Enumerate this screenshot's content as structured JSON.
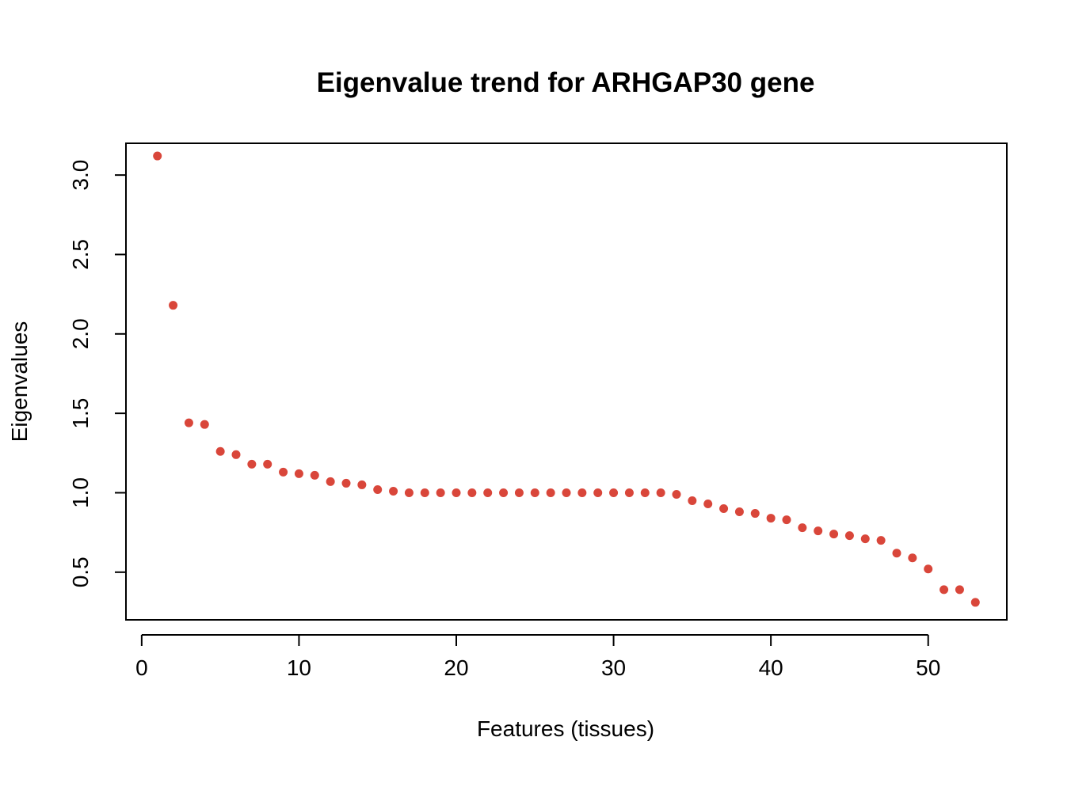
{
  "chart_data": {
    "type": "scatter",
    "title": "Eigenvalue trend for ARHGAP30 gene",
    "xlabel": "Features (tissues)",
    "ylabel": "Eigenvalues",
    "xlim": [
      -1,
      55
    ],
    "ylim": [
      0.2,
      3.2
    ],
    "xticks": [
      0,
      10,
      20,
      30,
      40,
      50
    ],
    "xtick_labels": [
      "0",
      "10",
      "20",
      "30",
      "40",
      "50"
    ],
    "yticks": [
      0.5,
      1.0,
      1.5,
      2.0,
      2.5,
      3.0
    ],
    "ytick_labels": [
      "0.5",
      "1.0",
      "1.5",
      "2.0",
      "2.5",
      "3.0"
    ],
    "grid": false,
    "point_color": "#d9463a",
    "series": [
      {
        "x": [
          1,
          2,
          3,
          4,
          5,
          6,
          7,
          8,
          9,
          10,
          11,
          12,
          13,
          14,
          15,
          16,
          17,
          18,
          19,
          20,
          21,
          22,
          23,
          24,
          25,
          26,
          27,
          28,
          29,
          30,
          31,
          32,
          33,
          34,
          35,
          36,
          37,
          38,
          39,
          40,
          41,
          42,
          43,
          44,
          45,
          46,
          47,
          48,
          49,
          50,
          51,
          52,
          53
        ],
        "values": [
          3.12,
          2.18,
          1.44,
          1.43,
          1.26,
          1.24,
          1.18,
          1.18,
          1.13,
          1.12,
          1.11,
          1.07,
          1.06,
          1.05,
          1.02,
          1.01,
          1.0,
          1.0,
          1.0,
          1.0,
          1.0,
          1.0,
          1.0,
          1.0,
          1.0,
          1.0,
          1.0,
          1.0,
          1.0,
          1.0,
          1.0,
          1.0,
          1.0,
          0.99,
          0.95,
          0.93,
          0.9,
          0.88,
          0.87,
          0.84,
          0.83,
          0.78,
          0.76,
          0.74,
          0.73,
          0.71,
          0.7,
          0.62,
          0.59,
          0.52,
          0.39,
          0.39,
          0.31
        ]
      }
    ]
  }
}
